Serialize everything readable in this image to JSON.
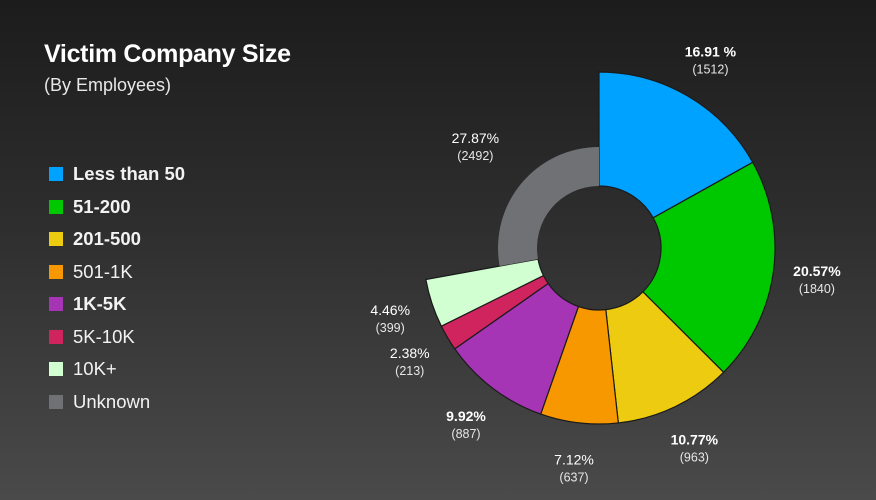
{
  "chart_data": {
    "type": "pie",
    "title": "Victim Company Size",
    "subtitle": "(By Employees)",
    "legend_position": "left",
    "categories": [
      "Less than 50",
      "51-200",
      "201-500",
      "501-1K",
      "1K-5K",
      "5K-10K",
      "10K+",
      "Unknown"
    ],
    "percent_labels": [
      "16.91 %",
      "20.57%",
      "10.77%",
      "7.12%",
      "9.92%",
      "2.38%",
      "4.46%",
      "27.87%"
    ],
    "count_labels": [
      "(1512)",
      "(1840)",
      "(963)",
      "(637)",
      "(887)",
      "(213)",
      "(399)",
      "(2492)"
    ],
    "percents": [
      16.91,
      20.57,
      10.77,
      7.12,
      9.92,
      2.38,
      4.46,
      27.87
    ],
    "values": [
      1512,
      1840,
      963,
      637,
      887,
      213,
      399,
      2492
    ],
    "colors": [
      "#00a2ff",
      "#00c800",
      "#eccb10",
      "#f79800",
      "#a535b5",
      "#d0245e",
      "#d2ffd2",
      "#707174"
    ],
    "emphasis": [
      true,
      true,
      true,
      false,
      true,
      false,
      false,
      false
    ],
    "reduced_radius": [
      false,
      false,
      false,
      false,
      false,
      false,
      false,
      true
    ]
  }
}
